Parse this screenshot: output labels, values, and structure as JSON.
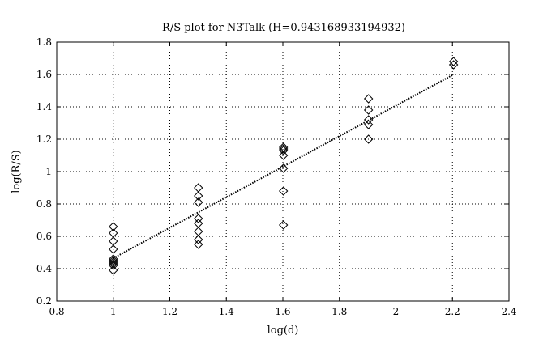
{
  "chart_data": {
    "type": "scatter",
    "title": "R/S plot for N3Talk (H=0.943168933194932)",
    "xlabel": "log(d)",
    "ylabel": "log(R/S)",
    "xlim": [
      0.8,
      2.4
    ],
    "ylim": [
      0.2,
      1.8
    ],
    "xticks": [
      0.8,
      1,
      1.2,
      1.4,
      1.6,
      1.8,
      2,
      2.2,
      2.4
    ],
    "yticks": [
      0.2,
      0.4,
      0.6,
      0.8,
      1,
      1.2,
      1.4,
      1.6,
      1.8
    ],
    "xtick_labels": [
      "0.8",
      "1",
      "1.2",
      "1.4",
      "1.6",
      "1.8",
      "2",
      "2.2",
      "2.4"
    ],
    "ytick_labels": [
      "0.2",
      "0.4",
      "0.6",
      "0.8",
      "1",
      "1.2",
      "1.4",
      "1.6",
      "1.8"
    ],
    "grid": true,
    "marker": "diamond",
    "series": [
      {
        "x": [
          1,
          1,
          1,
          1,
          1,
          1,
          1,
          1,
          1,
          1,
          1.301,
          1.301,
          1.301,
          1.301,
          1.301,
          1.301,
          1.301,
          1.301,
          1.602,
          1.602,
          1.602,
          1.602,
          1.602,
          1.602,
          1.602,
          1.903,
          1.903,
          1.903,
          1.903,
          1.903,
          2.204,
          2.204
        ],
        "y": [
          0.66,
          0.62,
          0.57,
          0.52,
          0.46,
          0.45,
          0.44,
          0.43,
          0.42,
          0.39,
          0.9,
          0.85,
          0.81,
          0.71,
          0.68,
          0.63,
          0.58,
          0.55,
          1.15,
          1.13,
          1.1,
          1.02,
          0.88,
          0.67,
          1.14,
          1.45,
          1.38,
          1.32,
          1.29,
          1.2,
          1.68,
          1.66
        ]
      }
    ],
    "fit_line": {
      "x": [
        1,
        2.204
      ],
      "y": [
        0.465,
        1.6
      ]
    }
  }
}
